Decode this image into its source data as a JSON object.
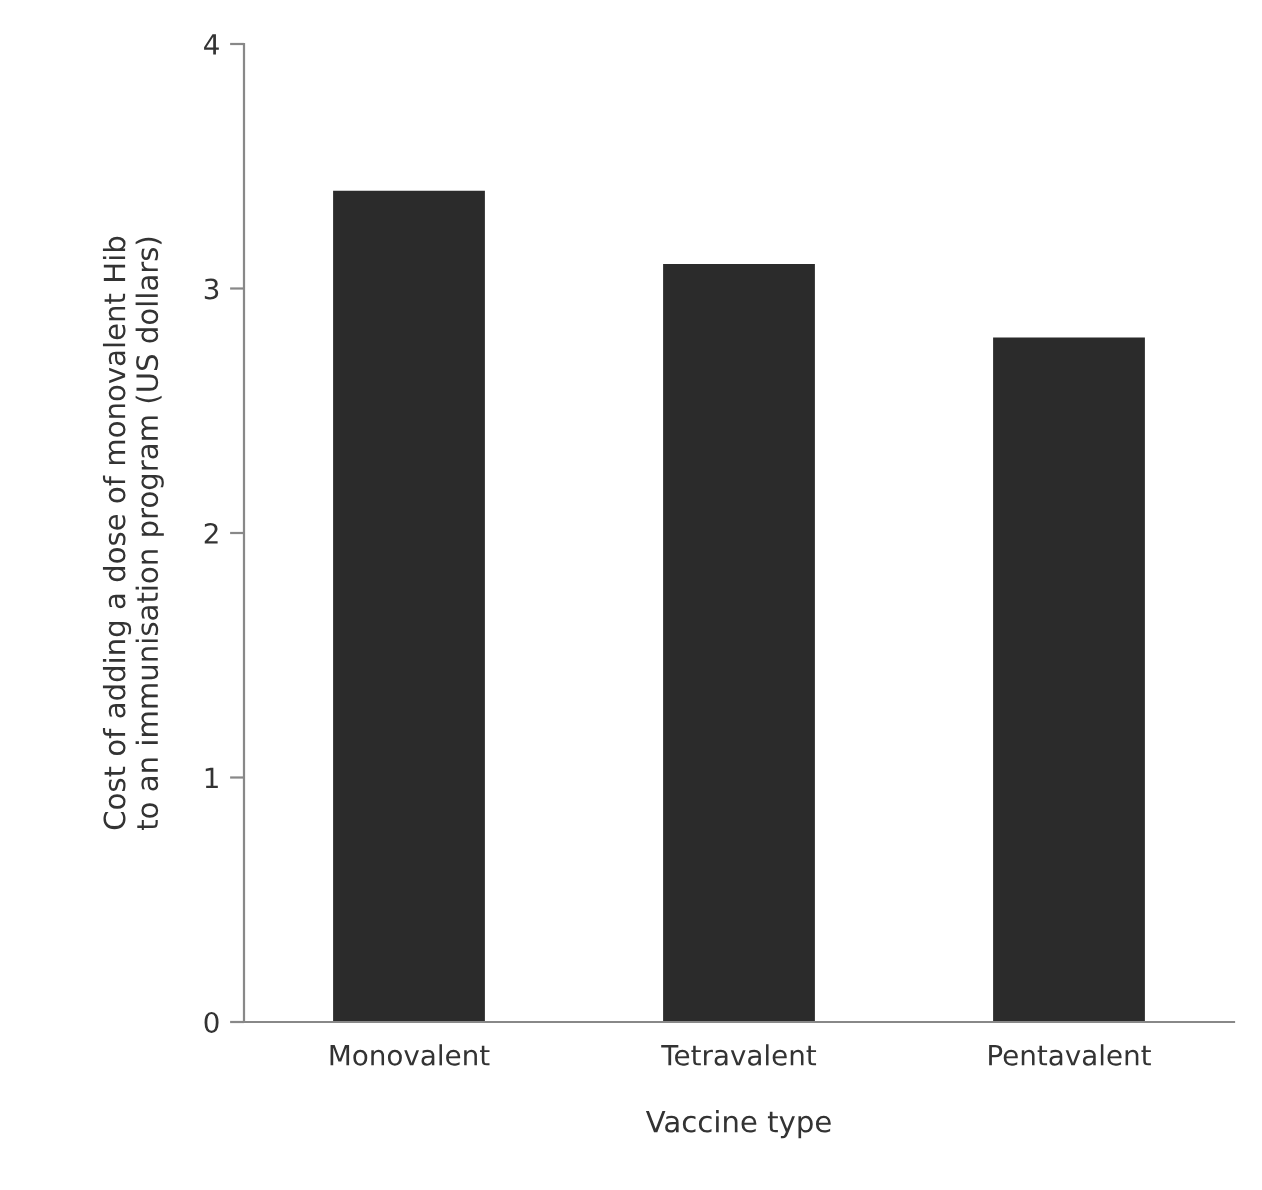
{
  "chart_data": {
    "type": "bar",
    "xlabel": "Vaccine type",
    "ylabel": "Cost of adding a dose of monovalent Hib\nto an immunisation program (US dollars)",
    "categories": [
      "Monovalent",
      "Tetravalent",
      "Pentavalent"
    ],
    "values": [
      3.4,
      3.1,
      2.8
    ],
    "color": "#2b2b2b",
    "ylim": [
      0,
      4
    ],
    "yticks": [
      0,
      1,
      2,
      3,
      4
    ],
    "grid": false
  }
}
